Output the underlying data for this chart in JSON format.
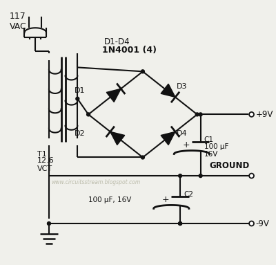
{
  "bg_color": "#f0f0eb",
  "line_color": "#111111",
  "text_color": "#111111",
  "watermark": "www.circuitsstream.blogspot.com",
  "title_line1": "D1-D4",
  "title_line2": "1N4001 (4)",
  "labels": {
    "vac": "117\nVAC",
    "T1": "T1",
    "vct": "12.6\nVCT",
    "D1": "D1",
    "D2": "D2",
    "D3": "D3",
    "D4": "D4",
    "C1_label": "C1",
    "C1_val": "100 μF",
    "C1_v": "16V",
    "C2_label": "C2",
    "C2_val": "100 μF, 16V",
    "plus9V": "+9V",
    "minus9V": "-9V",
    "ground_label": "GROUND"
  }
}
